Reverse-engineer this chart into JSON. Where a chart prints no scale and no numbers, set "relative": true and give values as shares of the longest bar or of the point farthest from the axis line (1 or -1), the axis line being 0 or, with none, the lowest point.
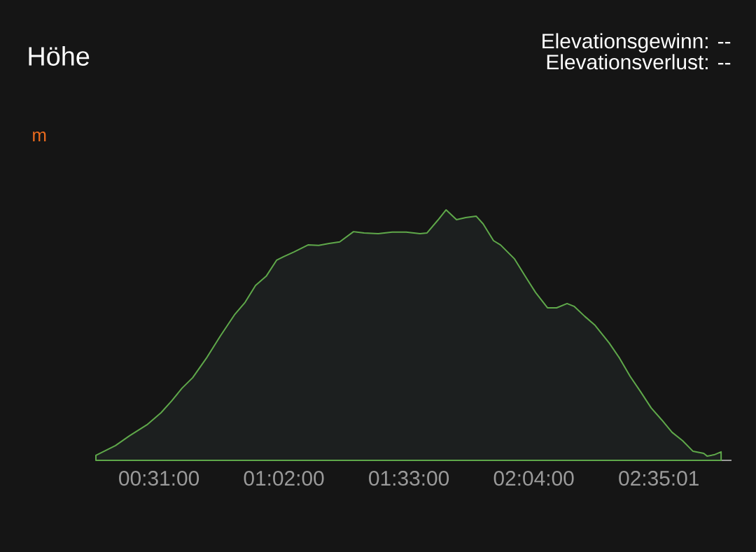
{
  "chart_data": {
    "type": "area",
    "title": "Höhe",
    "annotations": [
      "Elevationsgewinn: --",
      "Elevationsverlust: --",
      "m"
    ],
    "relative": true,
    "x": [
      0.256,
      0.337,
      0.395,
      0.467,
      0.525,
      0.569,
      0.612,
      0.656,
      0.713,
      0.771,
      0.829,
      0.873,
      0.916,
      0.96,
      1.003,
      1.032,
      1.075,
      1.133,
      1.177,
      1.22,
      1.264,
      1.321,
      1.365,
      1.423,
      1.481,
      1.539,
      1.596,
      1.625,
      1.669,
      1.704,
      1.747,
      1.785,
      1.828,
      1.857,
      1.9,
      1.929,
      1.987,
      2.031,
      2.074,
      2.123,
      2.161,
      2.204,
      2.233,
      2.277,
      2.32,
      2.378,
      2.421,
      2.465,
      2.508,
      2.552,
      2.595,
      2.638,
      2.682,
      2.725,
      2.769,
      2.783,
      2.812,
      2.841
    ],
    "series": [
      {
        "color": "#5fa84a",
        "values": [
          0.02,
          0.059,
          0.098,
          0.142,
          0.19,
          0.237,
          0.288,
          0.33,
          0.408,
          0.497,
          0.581,
          0.631,
          0.698,
          0.735,
          0.799,
          0.813,
          0.832,
          0.86,
          0.858,
          0.866,
          0.872,
          0.913,
          0.908,
          0.905,
          0.911,
          0.911,
          0.905,
          0.908,
          0.958,
          1,
          0.961,
          0.969,
          0.975,
          0.944,
          0.877,
          0.86,
          0.804,
          0.735,
          0.67,
          0.609,
          0.609,
          0.626,
          0.615,
          0.575,
          0.539,
          0.469,
          0.408,
          0.335,
          0.274,
          0.209,
          0.162,
          0.112,
          0.078,
          0.036,
          0.028,
          0.017,
          0.022,
          0.034
        ]
      }
    ],
    "xlim": [
      0.256,
      2.884
    ],
    "xticks": [
      {
        "value": 0.5167,
        "label": "00:31:00"
      },
      {
        "value": 1.0333,
        "label": "01:02:00"
      },
      {
        "value": 1.55,
        "label": "01:33:00"
      },
      {
        "value": 2.0667,
        "label": "02:04:00"
      },
      {
        "value": 2.5836,
        "label": "02:35:01"
      }
    ]
  }
}
